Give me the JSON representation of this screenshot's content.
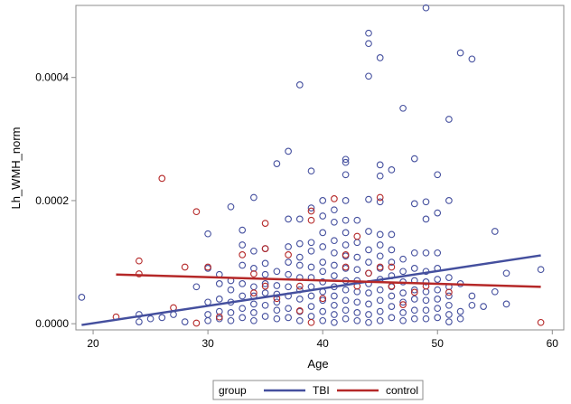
{
  "chart_data": {
    "type": "scatter",
    "title": "",
    "xlabel": "Age",
    "ylabel": "Lh_WMH_norm",
    "xlim": [
      18.5,
      61
    ],
    "ylim": [
      -1e-05,
      0.000517
    ],
    "xticks": [
      20,
      30,
      40,
      50,
      60
    ],
    "xtick_labels": [
      "20",
      "30",
      "40",
      "50",
      "60"
    ],
    "yticks": [
      0,
      0.0002,
      0.0004
    ],
    "ytick_labels": [
      "0.0000",
      "0.0002",
      "0.0004"
    ],
    "legend": {
      "title": "group",
      "placement": "bottom-center",
      "entries": [
        {
          "name": "TBI",
          "color": "#444f9e"
        },
        {
          "name": "control",
          "color": "#b52828"
        }
      ]
    },
    "series": [
      {
        "name": "TBI",
        "color": "#444f9e",
        "points": [
          [
            19,
            4.3e-05
          ],
          [
            24,
            3e-06
          ],
          [
            24,
            1.5e-05
          ],
          [
            25,
            8e-06
          ],
          [
            26,
            1e-05
          ],
          [
            27,
            1.5e-05
          ],
          [
            28,
            3e-06
          ],
          [
            29,
            6e-05
          ],
          [
            30,
            0.000146
          ],
          [
            30,
            9e-05
          ],
          [
            30,
            3.5e-05
          ],
          [
            30,
            1.5e-05
          ],
          [
            30,
            5e-06
          ],
          [
            31,
            8e-05
          ],
          [
            31,
            6.5e-05
          ],
          [
            31,
            4e-05
          ],
          [
            31,
            2e-05
          ],
          [
            31,
            8e-06
          ],
          [
            32,
            0.00019
          ],
          [
            32,
            7e-05
          ],
          [
            32,
            5.5e-05
          ],
          [
            32,
            3.5e-05
          ],
          [
            32,
            1.8e-05
          ],
          [
            32,
            5e-06
          ],
          [
            33,
            0.000152
          ],
          [
            33,
            0.000128
          ],
          [
            33,
            9.5e-05
          ],
          [
            33,
            6.5e-05
          ],
          [
            33,
            4.5e-05
          ],
          [
            33,
            2.5e-05
          ],
          [
            33,
            1e-05
          ],
          [
            34,
            0.000205
          ],
          [
            34,
            0.000118
          ],
          [
            34,
            9e-05
          ],
          [
            34,
            6e-05
          ],
          [
            34,
            4.5e-05
          ],
          [
            34,
            3.2e-05
          ],
          [
            34,
            1.8e-05
          ],
          [
            34,
            5e-06
          ],
          [
            35,
            0.000122
          ],
          [
            35,
            9.8e-05
          ],
          [
            35,
            8e-05
          ],
          [
            35,
            6.5e-05
          ],
          [
            35,
            5e-05
          ],
          [
            35,
            3e-05
          ],
          [
            35,
            1.2e-05
          ],
          [
            36,
            0.00026
          ],
          [
            36,
            8.5e-05
          ],
          [
            36,
            6.2e-05
          ],
          [
            36,
            4.8e-05
          ],
          [
            36,
            3.5e-05
          ],
          [
            36,
            2.2e-05
          ],
          [
            36,
            8e-06
          ],
          [
            37,
            0.00028
          ],
          [
            37,
            0.00017
          ],
          [
            37,
            0.000125
          ],
          [
            37,
            0.0001
          ],
          [
            37,
            8e-05
          ],
          [
            37,
            6e-05
          ],
          [
            37,
            4.5e-05
          ],
          [
            37,
            2.5e-05
          ],
          [
            37,
            1e-05
          ],
          [
            38,
            0.000388
          ],
          [
            38,
            0.00017
          ],
          [
            38,
            0.00013
          ],
          [
            38,
            0.000108
          ],
          [
            38,
            9.5e-05
          ],
          [
            38,
            7.5e-05
          ],
          [
            38,
            5.5e-05
          ],
          [
            38,
            4e-05
          ],
          [
            38,
            2e-05
          ],
          [
            38,
            5e-06
          ],
          [
            39,
            0.000248
          ],
          [
            39,
            0.000188
          ],
          [
            39,
            0.000132
          ],
          [
            39,
            0.000118
          ],
          [
            39,
            9.2e-05
          ],
          [
            39,
            7.5e-05
          ],
          [
            39,
            6e-05
          ],
          [
            39,
            4.5e-05
          ],
          [
            39,
            2.8e-05
          ],
          [
            39,
            1.2e-05
          ],
          [
            40,
            0.0002
          ],
          [
            40,
            0.000175
          ],
          [
            40,
            0.000148
          ],
          [
            40,
            0.000125
          ],
          [
            40,
            0.0001
          ],
          [
            40,
            8.5e-05
          ],
          [
            40,
            6.8e-05
          ],
          [
            40,
            5.2e-05
          ],
          [
            40,
            3.8e-05
          ],
          [
            40,
            2e-05
          ],
          [
            40,
            5e-06
          ],
          [
            41,
            0.000185
          ],
          [
            41,
            0.000165
          ],
          [
            41,
            0.000135
          ],
          [
            41,
            0.000115
          ],
          [
            41,
            9.5e-05
          ],
          [
            41,
            7.8e-05
          ],
          [
            41,
            6e-05
          ],
          [
            41,
            4.5e-05
          ],
          [
            41,
            3e-05
          ],
          [
            41,
            1.5e-05
          ],
          [
            41,
            2e-06
          ],
          [
            42,
            0.000267
          ],
          [
            42,
            0.000262
          ],
          [
            42,
            0.000242
          ],
          [
            42,
            0.0002
          ],
          [
            42,
            0.000168
          ],
          [
            42,
            0.000148
          ],
          [
            42,
            0.000128
          ],
          [
            42,
            0.00011
          ],
          [
            42,
            9e-05
          ],
          [
            42,
            7e-05
          ],
          [
            42,
            5.5e-05
          ],
          [
            42,
            3.8e-05
          ],
          [
            42,
            2.2e-05
          ],
          [
            42,
            8e-06
          ],
          [
            43,
            0.000168
          ],
          [
            43,
            0.000132
          ],
          [
            43,
            0.000108
          ],
          [
            43,
            8.8e-05
          ],
          [
            43,
            7e-05
          ],
          [
            43,
            5.2e-05
          ],
          [
            43,
            3.5e-05
          ],
          [
            43,
            1.8e-05
          ],
          [
            43,
            5e-06
          ],
          [
            44,
            0.000472
          ],
          [
            44,
            0.000455
          ],
          [
            44,
            0.000402
          ],
          [
            44,
            0.000202
          ],
          [
            44,
            0.00015
          ],
          [
            44,
            0.00012
          ],
          [
            44,
            0.0001
          ],
          [
            44,
            8.2e-05
          ],
          [
            44,
            6.5e-05
          ],
          [
            44,
            5e-05
          ],
          [
            44,
            3.2e-05
          ],
          [
            44,
            1.5e-05
          ],
          [
            44,
            2e-06
          ],
          [
            45,
            0.000432
          ],
          [
            45,
            0.000258
          ],
          [
            45,
            0.00024
          ],
          [
            45,
            0.000198
          ],
          [
            45,
            0.000145
          ],
          [
            45,
            0.000128
          ],
          [
            45,
            0.00011
          ],
          [
            45,
            9e-05
          ],
          [
            45,
            7.2e-05
          ],
          [
            45,
            5.5e-05
          ],
          [
            45,
            3.8e-05
          ],
          [
            45,
            2e-05
          ],
          [
            45,
            5e-06
          ],
          [
            46,
            0.00025
          ],
          [
            46,
            0.000145
          ],
          [
            46,
            0.00012
          ],
          [
            46,
            0.0001
          ],
          [
            46,
            7.8e-05
          ],
          [
            46,
            6e-05
          ],
          [
            46,
            4.5e-05
          ],
          [
            46,
            2.8e-05
          ],
          [
            46,
            1e-05
          ],
          [
            47,
            0.00035
          ],
          [
            47,
            0.000105
          ],
          [
            47,
            8.5e-05
          ],
          [
            47,
            6.8e-05
          ],
          [
            47,
            5e-05
          ],
          [
            47,
            3.5e-05
          ],
          [
            47,
            1.8e-05
          ],
          [
            47,
            5e-06
          ],
          [
            48,
            0.000268
          ],
          [
            48,
            0.000195
          ],
          [
            48,
            0.000115
          ],
          [
            48,
            9e-05
          ],
          [
            48,
            7e-05
          ],
          [
            48,
            5.5e-05
          ],
          [
            48,
            4e-05
          ],
          [
            48,
            2.2e-05
          ],
          [
            48,
            8e-06
          ],
          [
            49,
            0.000513
          ],
          [
            49,
            0.000198
          ],
          [
            49,
            0.00017
          ],
          [
            49,
            0.000115
          ],
          [
            49,
            8.5e-05
          ],
          [
            49,
            6.8e-05
          ],
          [
            49,
            5.2e-05
          ],
          [
            49,
            3.8e-05
          ],
          [
            49,
            2.2e-05
          ],
          [
            49,
            8e-06
          ],
          [
            50,
            0.000242
          ],
          [
            50,
            0.00018
          ],
          [
            50,
            0.000115
          ],
          [
            50,
            9e-05
          ],
          [
            50,
            7.2e-05
          ],
          [
            50,
            5.5e-05
          ],
          [
            50,
            4e-05
          ],
          [
            50,
            2.5e-05
          ],
          [
            50,
            1e-05
          ],
          [
            51,
            0.000332
          ],
          [
            51,
            0.0002
          ],
          [
            51,
            7.5e-05
          ],
          [
            51,
            6e-05
          ],
          [
            51,
            4.5e-05
          ],
          [
            51,
            3e-05
          ],
          [
            51,
            1.5e-05
          ],
          [
            51,
            3e-06
          ],
          [
            52,
            0.00044
          ],
          [
            52,
            6.5e-05
          ],
          [
            52,
            2e-05
          ],
          [
            52,
            8e-06
          ],
          [
            53,
            0.00043
          ],
          [
            53,
            4.5e-05
          ],
          [
            53,
            3e-05
          ],
          [
            54,
            2.8e-05
          ],
          [
            55,
            0.00015
          ],
          [
            55,
            5.2e-05
          ],
          [
            56,
            8.2e-05
          ],
          [
            56,
            3.2e-05
          ],
          [
            59,
            8.8e-05
          ]
        ],
        "fit_line": {
          "x": [
            19,
            59
          ],
          "y": [
            -2e-06,
            0.000111
          ]
        }
      },
      {
        "name": "control",
        "color": "#b52828",
        "points": [
          [
            22,
            1.1e-05
          ],
          [
            24,
            0.000102
          ],
          [
            24,
            8.1e-05
          ],
          [
            26,
            0.000236
          ],
          [
            27,
            2.6e-05
          ],
          [
            28,
            9.2e-05
          ],
          [
            29,
            0.000182
          ],
          [
            29,
            1e-06
          ],
          [
            30,
            9.2e-05
          ],
          [
            31,
            1.1e-05
          ],
          [
            33,
            0.000112
          ],
          [
            34,
            8.1e-05
          ],
          [
            34,
            5e-05
          ],
          [
            35,
            0.000163
          ],
          [
            35,
            0.000122
          ],
          [
            35,
            6.1e-05
          ],
          [
            36,
            4.1e-05
          ],
          [
            37,
            0.000112
          ],
          [
            38,
            6.1e-05
          ],
          [
            38,
            2.1e-05
          ],
          [
            39,
            0.000183
          ],
          [
            39,
            0.000168
          ],
          [
            39,
            2e-06
          ],
          [
            40,
            4.1e-05
          ],
          [
            41,
            0.000203
          ],
          [
            42,
            0.000112
          ],
          [
            42,
            9.2e-05
          ],
          [
            43,
            6.1e-05
          ],
          [
            43,
            0.000142
          ],
          [
            44,
            8.2e-05
          ],
          [
            45,
            0.000205
          ],
          [
            45,
            9.2e-05
          ],
          [
            46,
            9.2e-05
          ],
          [
            46,
            6.1e-05
          ],
          [
            47,
            3.1e-05
          ],
          [
            48,
            5.1e-05
          ],
          [
            49,
            6.1e-05
          ],
          [
            51,
            5.1e-05
          ],
          [
            59,
            2e-06
          ]
        ],
        "fit_line": {
          "x": [
            22,
            59
          ],
          "y": [
            8e-05,
            6e-05
          ]
        }
      }
    ]
  }
}
